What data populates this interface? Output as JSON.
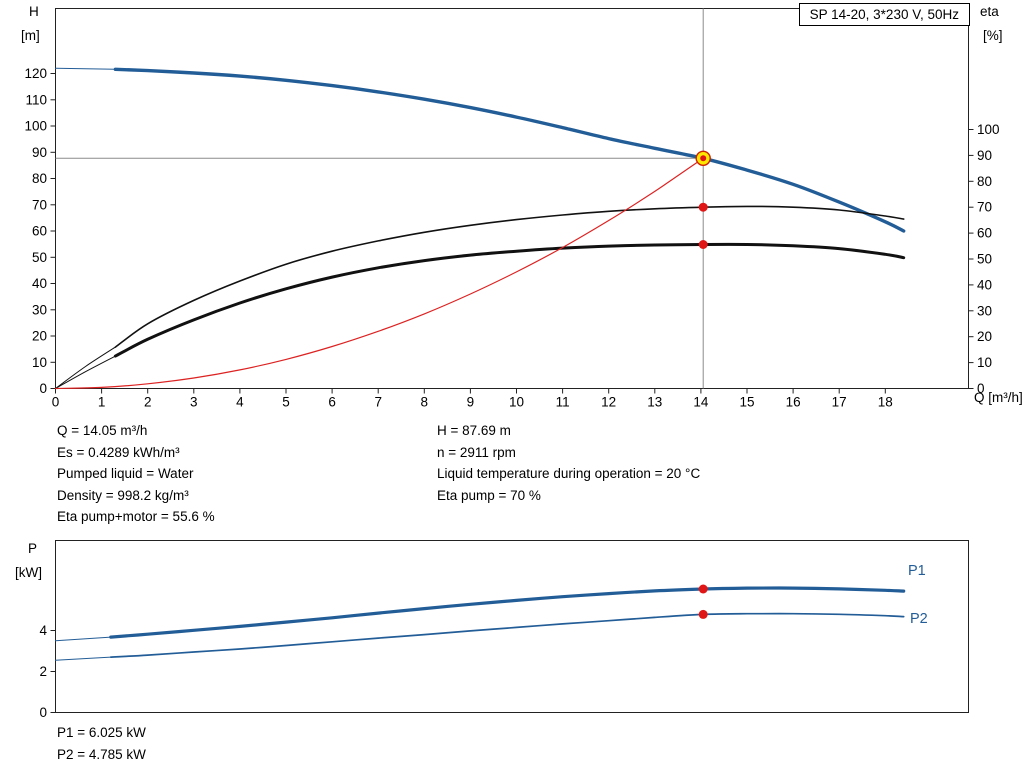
{
  "accent_colors": {
    "curve_blue": "#235d97",
    "curve_black": "#111111",
    "curve_red": "#dd2222",
    "marker_red": "#e01616",
    "duty_yellow": "#ffe800",
    "crosshair_gray": "#8c8c8c"
  },
  "title_box": {
    "label": "SP 14-20, 3*230 V, 50Hz"
  },
  "top_chart": {
    "left_axis_label": "H",
    "left_axis_unit": "[m]",
    "right_axis_label": "eta",
    "right_axis_unit": "[%]",
    "x_axis_label": "Q [m³/h]"
  },
  "bottom_chart": {
    "y_axis_label": "P",
    "y_axis_unit": "[kW]",
    "p1_label": "P1",
    "p2_label": "P2"
  },
  "results": {
    "left": [
      "Q = 14.05 m³/h",
      "Es = 0.4289 kWh/m³",
      "Pumped liquid = Water",
      "Density = 998.2 kg/m³",
      "Eta pump+motor = 55.6 %"
    ],
    "right": [
      "H = 87.69 m",
      "n = 2911 rpm",
      "Liquid temperature during operation = 20 °C",
      "Eta pump = 70 %"
    ]
  },
  "power_results": [
    "P1 = 6.025 kW",
    "P2 = 4.785 kW"
  ],
  "chart_data": [
    {
      "type": "line",
      "title": "SP 14-20, 3*230 V, 50Hz",
      "xlabel": "Q [m³/h]",
      "x_ticks": [
        0,
        1,
        2,
        3,
        4,
        5,
        6,
        7,
        8,
        9,
        10,
        11,
        12,
        13,
        14,
        15,
        16,
        17,
        18
      ],
      "x_range": [
        0,
        19.8
      ],
      "grid": false,
      "left_axis": {
        "label": "H [m]",
        "ticks": [
          0,
          10,
          20,
          30,
          40,
          50,
          60,
          70,
          80,
          90,
          100,
          110,
          120
        ],
        "range": [
          0,
          144.8
        ]
      },
      "right_axis": {
        "label": "eta [%]",
        "ticks": [
          0,
          10,
          20,
          30,
          40,
          50,
          60,
          70,
          80,
          90,
          100
        ],
        "range": [
          0,
          146.7
        ]
      },
      "series": [
        {
          "name": "pump-curve",
          "axis": "left",
          "color": "#235d97",
          "width": 3.4,
          "lead": [
            [
              0,
              122
            ],
            [
              1.3,
              121.6
            ]
          ],
          "points": [
            [
              1.3,
              121.6
            ],
            [
              2,
              121.1
            ],
            [
              3,
              120.2
            ],
            [
              4,
              119
            ],
            [
              5,
              117.4
            ],
            [
              6,
              115.4
            ],
            [
              7,
              113
            ],
            [
              8,
              110.2
            ],
            [
              9,
              107
            ],
            [
              10,
              103.4
            ],
            [
              11,
              99.4
            ],
            [
              12,
              95.2
            ],
            [
              13,
              91.5
            ],
            [
              14.05,
              87.69
            ],
            [
              15,
              83.2
            ],
            [
              16,
              77.8
            ],
            [
              17,
              71
            ],
            [
              18,
              63.5
            ],
            [
              18.4,
              60
            ]
          ]
        },
        {
          "name": "eta-pump",
          "axis": "right",
          "color": "#111111",
          "width": 1.6,
          "lead": [
            [
              0,
              0
            ],
            [
              0.65,
              8.5
            ],
            [
              1.3,
              16
            ]
          ],
          "points": [
            [
              1.3,
              16
            ],
            [
              2,
              25
            ],
            [
              3,
              34
            ],
            [
              4,
              41.5
            ],
            [
              5,
              48
            ],
            [
              6,
              53
            ],
            [
              7,
              57
            ],
            [
              8,
              60.3
            ],
            [
              9,
              63
            ],
            [
              10,
              65.2
            ],
            [
              11,
              67
            ],
            [
              12,
              68.4
            ],
            [
              13,
              69.4
            ],
            [
              14.05,
              70
            ],
            [
              15,
              70.3
            ],
            [
              16,
              70
            ],
            [
              17,
              68.9
            ],
            [
              18,
              66.6
            ],
            [
              18.4,
              65.4
            ]
          ]
        },
        {
          "name": "eta-pump-motor",
          "axis": "right",
          "color": "#111111",
          "width": 3,
          "lead": [
            [
              0,
              0
            ],
            [
              0.65,
              6.5
            ],
            [
              1.3,
              12.5
            ]
          ],
          "points": [
            [
              1.3,
              12.5
            ],
            [
              2,
              19
            ],
            [
              3,
              26.5
            ],
            [
              4,
              33
            ],
            [
              5,
              38.5
            ],
            [
              6,
              43
            ],
            [
              7,
              46.6
            ],
            [
              8,
              49.4
            ],
            [
              9,
              51.5
            ],
            [
              10,
              53
            ],
            [
              11,
              54.2
            ],
            [
              12,
              55
            ],
            [
              13,
              55.4
            ],
            [
              14.05,
              55.6
            ],
            [
              15,
              55.6
            ],
            [
              16,
              55.1
            ],
            [
              17,
              54
            ],
            [
              18,
              51.8
            ],
            [
              18.4,
              50.5
            ]
          ]
        },
        {
          "name": "system-curve",
          "axis": "left",
          "color": "#dd2222",
          "width": 1.2,
          "points": [
            [
              0,
              0
            ],
            [
              1,
              0.4
            ],
            [
              2,
              1.8
            ],
            [
              3,
              4
            ],
            [
              4,
              7.1
            ],
            [
              5,
              11.1
            ],
            [
              6,
              16
            ],
            [
              7,
              21.8
            ],
            [
              8,
              28.4
            ],
            [
              9,
              36
            ],
            [
              10,
              44.4
            ],
            [
              11,
              53.7
            ],
            [
              12,
              64
            ],
            [
              13,
              75.1
            ],
            [
              13.5,
              81.1
            ],
            [
              14.05,
              87.69
            ]
          ]
        }
      ],
      "duty_point": {
        "q": 14.05,
        "h": 87.69
      },
      "eta_markers": [
        {
          "name": "eta-pump-marker",
          "q": 14.05,
          "value": 70
        },
        {
          "name": "eta-pump-motor-marker",
          "q": 14.05,
          "value": 55.6
        }
      ]
    },
    {
      "type": "line",
      "ylabel": "P [kW]",
      "y_ticks": [
        0,
        2,
        4
      ],
      "y_range": [
        0,
        8.4
      ],
      "x_range": [
        0,
        19.8
      ],
      "grid": false,
      "series": [
        {
          "name": "p1",
          "label": "P1",
          "color": "#235d97",
          "width": 3.2,
          "lead": [
            [
              0,
              3.5
            ],
            [
              1.2,
              3.68
            ]
          ],
          "points": [
            [
              1.2,
              3.68
            ],
            [
              2,
              3.82
            ],
            [
              3,
              4.01
            ],
            [
              4,
              4.2
            ],
            [
              5,
              4.41
            ],
            [
              6,
              4.62
            ],
            [
              7,
              4.85
            ],
            [
              8,
              5.07
            ],
            [
              9,
              5.28
            ],
            [
              10,
              5.47
            ],
            [
              11,
              5.65
            ],
            [
              12,
              5.8
            ],
            [
              13,
              5.93
            ],
            [
              14.05,
              6.025
            ],
            [
              15,
              6.07
            ],
            [
              16,
              6.07
            ],
            [
              17,
              6.03
            ],
            [
              18,
              5.96
            ],
            [
              18.4,
              5.92
            ]
          ]
        },
        {
          "name": "p2",
          "label": "P2",
          "color": "#235d97",
          "width": 1.7,
          "lead": [
            [
              0,
              2.55
            ],
            [
              1.2,
              2.7
            ]
          ],
          "points": [
            [
              1.2,
              2.7
            ],
            [
              2,
              2.8
            ],
            [
              3,
              2.95
            ],
            [
              4,
              3.1
            ],
            [
              5,
              3.27
            ],
            [
              6,
              3.45
            ],
            [
              7,
              3.63
            ],
            [
              8,
              3.8
            ],
            [
              9,
              3.98
            ],
            [
              10,
              4.15
            ],
            [
              11,
              4.32
            ],
            [
              12,
              4.48
            ],
            [
              13,
              4.64
            ],
            [
              14.05,
              4.785
            ],
            [
              15,
              4.82
            ],
            [
              16,
              4.82
            ],
            [
              17,
              4.79
            ],
            [
              18,
              4.72
            ],
            [
              18.4,
              4.68
            ]
          ]
        }
      ],
      "markers": [
        {
          "name": "p1-marker",
          "q": 14.05,
          "value": 6.025
        },
        {
          "name": "p2-marker",
          "q": 14.05,
          "value": 4.785
        }
      ]
    }
  ]
}
